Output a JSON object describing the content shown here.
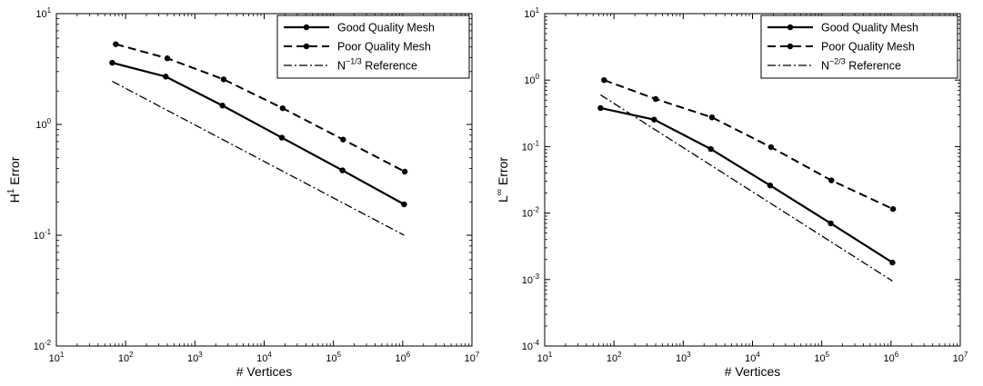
{
  "chart_data": [
    {
      "type": "line",
      "xscale": "log",
      "yscale": "log",
      "xlim": [
        10,
        10000000
      ],
      "ylim": [
        0.01,
        10
      ],
      "xlabel": "# Vertices",
      "ylabel": {
        "base": "H",
        "sup": "1",
        "rest": " Error"
      },
      "x_ticks": [
        {
          "value": 10,
          "base": "10",
          "exp": "1"
        },
        {
          "value": 100,
          "base": "10",
          "exp": "2"
        },
        {
          "value": 1000,
          "base": "10",
          "exp": "3"
        },
        {
          "value": 10000,
          "base": "10",
          "exp": "4"
        },
        {
          "value": 100000,
          "base": "10",
          "exp": "5"
        },
        {
          "value": 1000000,
          "base": "10",
          "exp": "6"
        },
        {
          "value": 10000000,
          "base": "10",
          "exp": "7"
        }
      ],
      "y_ticks": [
        {
          "value": 0.01,
          "base": "10",
          "exp": "-2"
        },
        {
          "value": 0.1,
          "base": "10",
          "exp": "-1"
        },
        {
          "value": 1,
          "base": "10",
          "exp": "0"
        },
        {
          "value": 10,
          "base": "10",
          "exp": "1"
        }
      ],
      "legend_position": "top-right",
      "series": [
        {
          "name": "Good Quality Mesh",
          "style": "solid",
          "markers": true,
          "x": [
            64,
            380,
            2500,
            18000,
            135000,
            1050000
          ],
          "y": [
            3.6,
            2.7,
            1.48,
            0.76,
            0.385,
            0.19
          ]
        },
        {
          "name": "Poor Quality Mesh",
          "style": "dashed",
          "markers": true,
          "x": [
            72,
            400,
            2600,
            18500,
            138000,
            1070000
          ],
          "y": [
            5.3,
            3.95,
            2.55,
            1.4,
            0.73,
            0.375
          ]
        },
        {
          "legend": {
            "base": "N",
            "sup": "−1/3",
            "rest": " Reference"
          },
          "style": "dashdot",
          "markers": false,
          "x": [
            64,
            1050000
          ],
          "y": [
            2.45,
            0.1
          ]
        }
      ]
    },
    {
      "type": "line",
      "xscale": "log",
      "yscale": "log",
      "xlim": [
        10,
        10000000
      ],
      "ylim": [
        0.0001,
        10
      ],
      "xlabel": "# Vertices",
      "ylabel": {
        "base": "L",
        "sup": "∞",
        "rest": " Error"
      },
      "x_ticks": [
        {
          "value": 10,
          "base": "10",
          "exp": "1"
        },
        {
          "value": 100,
          "base": "10",
          "exp": "2"
        },
        {
          "value": 1000,
          "base": "10",
          "exp": "3"
        },
        {
          "value": 10000,
          "base": "10",
          "exp": "4"
        },
        {
          "value": 100000,
          "base": "10",
          "exp": "5"
        },
        {
          "value": 1000000,
          "base": "10",
          "exp": "6"
        },
        {
          "value": 10000000,
          "base": "10",
          "exp": "7"
        }
      ],
      "y_ticks": [
        {
          "value": 0.0001,
          "base": "10",
          "exp": "-4"
        },
        {
          "value": 0.001,
          "base": "10",
          "exp": "-3"
        },
        {
          "value": 0.01,
          "base": "10",
          "exp": "-2"
        },
        {
          "value": 0.1,
          "base": "10",
          "exp": "-1"
        },
        {
          "value": 1,
          "base": "10",
          "exp": "0"
        },
        {
          "value": 10,
          "base": "10",
          "exp": "1"
        }
      ],
      "legend_position": "top-right",
      "series": [
        {
          "name": "Good Quality Mesh",
          "style": "solid",
          "markers": true,
          "x": [
            64,
            380,
            2500,
            18000,
            135000,
            1050000
          ],
          "y": [
            0.38,
            0.255,
            0.092,
            0.026,
            0.007,
            0.0018
          ]
        },
        {
          "name": "Poor Quality Mesh",
          "style": "dashed",
          "markers": true,
          "x": [
            72,
            400,
            2600,
            18500,
            138000,
            1070000
          ],
          "y": [
            1.0,
            0.52,
            0.275,
            0.098,
            0.031,
            0.0115
          ]
        },
        {
          "legend": {
            "base": "N",
            "sup": "−2/3",
            "rest": " Reference"
          },
          "style": "dashdot",
          "markers": false,
          "x": [
            64,
            1050000
          ],
          "y": [
            0.6,
            0.00095
          ]
        }
      ]
    }
  ]
}
